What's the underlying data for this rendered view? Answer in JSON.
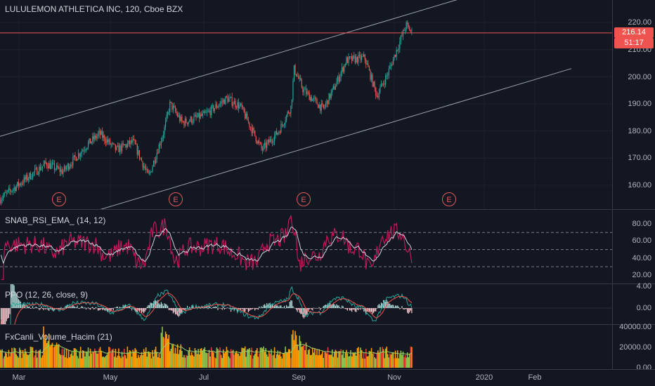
{
  "main": {
    "title": "LULULEMON ATHLETICA INC, 120, Cboe BZX",
    "y_ticks": [
      "220.00",
      "210.00",
      "200.00",
      "190.00",
      "180.00",
      "170.00",
      "160.00"
    ],
    "price_badge": "216.14",
    "time_badge": "51:17",
    "earnings_label": "E",
    "colors": {
      "up": "#26a69a",
      "down": "#ef5350",
      "channel": "#9aa0ad",
      "price_line": "#ef5350"
    }
  },
  "rsi": {
    "label": "SNAB_RSI_EMA_ (14, 12)",
    "y_ticks": [
      "80.00",
      "60.00",
      "40.00",
      "20.00"
    ],
    "levels": [
      70,
      50,
      30
    ],
    "colors": {
      "rsi": "#c2185b",
      "ema": "#d1d4dc"
    }
  },
  "ppo": {
    "label": "PPO (12, 26, close, 9)",
    "y_ticks": [
      "4.00",
      "0.00"
    ],
    "colors": {
      "ppo": "#26a69a",
      "signal": "#ef5350"
    }
  },
  "volume": {
    "label": "FxCanli_Volume_Hacim (21)",
    "y_ticks": [
      "40000.00",
      "20000.00",
      "0.00"
    ],
    "colors": {
      "base": "#ff9800",
      "green": "#8bc34a",
      "red": "#e53935",
      "avg": "#9ccc65"
    }
  },
  "x_axis": {
    "labels": [
      "Mar",
      "May",
      "Jul",
      "Sep",
      "Nov",
      "2020",
      "Feb"
    ]
  },
  "chart_data": {
    "type": "candlestick",
    "symbol": "LULULEMON ATHLETICA INC",
    "interval": "120",
    "exchange": "Cboe BZX",
    "last_price": 216.14,
    "countdown": "51:17",
    "ylim_price": [
      150,
      225
    ],
    "ylim_rsi": [
      10,
      90
    ],
    "ylim_ppo": [
      -3.5,
      4.5
    ],
    "ylim_volume": [
      0,
      42000
    ],
    "price_path": [
      {
        "date": "2019-02-26",
        "close": 155
      },
      {
        "date": "2019-03-28",
        "close": 168
      },
      {
        "date": "2019-04-08",
        "close": 165
      },
      {
        "date": "2019-04-24",
        "close": 175
      },
      {
        "date": "2019-05-02",
        "close": 179
      },
      {
        "date": "2019-05-13",
        "close": 173
      },
      {
        "date": "2019-05-24",
        "close": 176
      },
      {
        "date": "2019-06-03",
        "close": 163
      },
      {
        "date": "2019-06-13",
        "close": 180
      },
      {
        "date": "2019-06-17",
        "close": 190
      },
      {
        "date": "2019-06-25",
        "close": 183
      },
      {
        "date": "2019-07-10",
        "close": 186
      },
      {
        "date": "2019-07-24",
        "close": 192
      },
      {
        "date": "2019-08-02",
        "close": 189
      },
      {
        "date": "2019-08-16",
        "close": 173
      },
      {
        "date": "2019-08-27",
        "close": 180
      },
      {
        "date": "2019-09-04",
        "close": 189
      },
      {
        "date": "2019-09-06",
        "close": 203
      },
      {
        "date": "2019-09-12",
        "close": 195
      },
      {
        "date": "2019-09-25",
        "close": 188
      },
      {
        "date": "2019-10-03",
        "close": 197
      },
      {
        "date": "2019-10-10",
        "close": 206
      },
      {
        "date": "2019-10-22",
        "close": 207
      },
      {
        "date": "2019-10-30",
        "close": 193
      },
      {
        "date": "2019-11-06",
        "close": 201
      },
      {
        "date": "2019-11-18",
        "close": 219
      },
      {
        "date": "2019-11-22",
        "close": 216.14
      }
    ],
    "channel": [
      {
        "name": "upper",
        "points": [
          {
            "date": "2019-02-26",
            "price": 178
          },
          {
            "date": "2020-03-05",
            "price": 241
          }
        ]
      },
      {
        "name": "lower",
        "points": [
          {
            "date": "2019-02-26",
            "price": 140
          },
          {
            "date": "2020-03-05",
            "price": 203
          }
        ]
      }
    ],
    "earnings_dates": [
      "2019-03-27",
      "2019-06-12",
      "2019-09-05",
      "2019-12-10"
    ],
    "rsi_levels": [
      70,
      50,
      30
    ]
  }
}
